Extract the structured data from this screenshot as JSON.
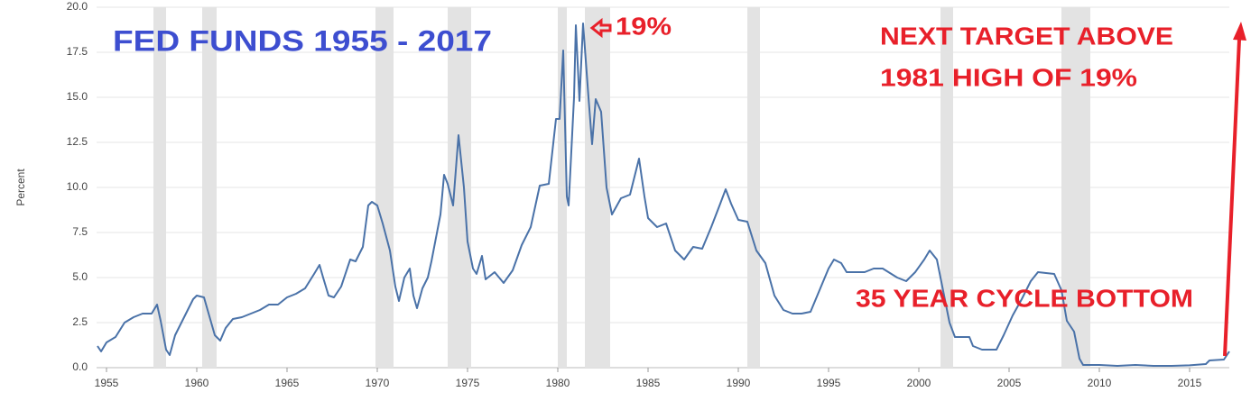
{
  "chart_data": {
    "type": "line",
    "y_label": "Percent",
    "annotations": [
      {
        "text": "FED FUNDS 1955 - 2017",
        "color": "#3d4ed0"
      },
      {
        "text": "19%",
        "color": "#e8202a"
      },
      {
        "text": "NEXT TARGET ABOVE",
        "color": "#e8202a"
      },
      {
        "text": "1981 HIGH OF 19%",
        "color": "#e8202a"
      },
      {
        "text": "35 YEAR CYCLE BOTTOM",
        "color": "#e8202a"
      }
    ],
    "xlim": [
      1954.45,
      2017.2
    ],
    "xticks": [
      1955,
      1960,
      1965,
      1970,
      1975,
      1980,
      1985,
      1990,
      1995,
      2000,
      2005,
      2010,
      2015
    ],
    "ylim": [
      0,
      20
    ],
    "yticks": [
      {
        "value": 0,
        "label": "0.0"
      },
      2.5,
      {
        "value": 5,
        "label": "5.0"
      },
      7.5,
      {
        "value": 10,
        "label": "10.0"
      },
      12.5,
      {
        "value": 15,
        "label": "15.0"
      },
      17.5,
      {
        "value": 20,
        "label": "20.0"
      }
    ],
    "grid": true,
    "recessions": [
      [
        1957.6,
        1958.3
      ],
      [
        1960.3,
        1961.1
      ],
      [
        1969.9,
        1970.9
      ],
      [
        1973.9,
        1975.2
      ],
      [
        1980.0,
        1980.5
      ],
      [
        1981.5,
        1982.9
      ],
      [
        1990.5,
        1991.2
      ],
      [
        2001.2,
        2001.9
      ],
      [
        2007.9,
        2009.5
      ]
    ],
    "recession_color": "#e3e3e3",
    "series": [
      {
        "name": "Fed Funds",
        "color": "#4a72a8",
        "x": [
          1954.5,
          1954.7,
          1955.0,
          1955.5,
          1956,
          1956.5,
          1957,
          1957.5,
          1957.8,
          1958.0,
          1958.3,
          1958.5,
          1958.8,
          1959.3,
          1959.8,
          1960.0,
          1960.4,
          1960.8,
          1961.0,
          1961.3,
          1961.6,
          1962,
          1962.5,
          1963,
          1963.5,
          1964,
          1964.5,
          1965,
          1965.5,
          1966,
          1966.5,
          1966.8,
          1967.0,
          1967.3,
          1967.6,
          1968,
          1968.5,
          1968.8,
          1969.2,
          1969.5,
          1969.7,
          1970.0,
          1970.3,
          1970.7,
          1971.0,
          1971.2,
          1971.5,
          1971.8,
          1972.0,
          1972.2,
          1972.5,
          1972.8,
          1973.0,
          1973.5,
          1973.7,
          1973.9,
          1974.2,
          1974.5,
          1974.8,
          1975.0,
          1975.3,
          1975.5,
          1975.8,
          1976.0,
          1976.5,
          1977.0,
          1977.5,
          1978,
          1978.5,
          1979.0,
          1979.5,
          1979.9,
          1980.1,
          1980.3,
          1980.5,
          1980.6,
          1980.9,
          1981.0,
          1981.2,
          1981.4,
          1981.7,
          1981.9,
          1982.1,
          1982.4,
          1982.7,
          1983.0,
          1983.5,
          1984.0,
          1984.5,
          1984.8,
          1985,
          1985.5,
          1986,
          1986.5,
          1987.0,
          1987.5,
          1988,
          1988.5,
          1989.0,
          1989.3,
          1989.6,
          1990.0,
          1990.5,
          1991.0,
          1991.5,
          1992.0,
          1992.5,
          1993,
          1993.5,
          1994.0,
          1994.5,
          1995.0,
          1995.3,
          1995.7,
          1996,
          1996.5,
          1997,
          1997.5,
          1998,
          1998.8,
          1999.3,
          1999.8,
          2000.3,
          2000.6,
          2001.0,
          2001.3,
          2001.7,
          2002.0,
          2002.8,
          2003.0,
          2003.5,
          2004.3,
          2004.7,
          2005.2,
          2005.7,
          2006.2,
          2006.6,
          2007.5,
          2007.9,
          2008.2,
          2008.6,
          2008.9,
          2009.1,
          2010,
          2011,
          2012,
          2013,
          2014,
          2015,
          2015.9,
          2016.1,
          2016.9,
          2017.2
        ],
        "values": [
          1.2,
          0.9,
          1.4,
          1.7,
          2.5,
          2.8,
          3.0,
          3.0,
          3.5,
          2.6,
          1.0,
          0.7,
          1.8,
          2.8,
          3.8,
          4.0,
          3.9,
          2.5,
          1.8,
          1.5,
          2.2,
          2.7,
          2.8,
          3.0,
          3.2,
          3.5,
          3.5,
          3.9,
          4.1,
          4.4,
          5.2,
          5.7,
          5.0,
          4.0,
          3.9,
          4.5,
          6.0,
          5.9,
          6.7,
          9.0,
          9.2,
          9.0,
          8.0,
          6.5,
          4.5,
          3.7,
          5.0,
          5.5,
          4.0,
          3.3,
          4.4,
          5.0,
          5.9,
          8.5,
          10.7,
          10.2,
          9.0,
          12.9,
          10.0,
          7.0,
          5.5,
          5.2,
          6.2,
          4.9,
          5.3,
          4.7,
          5.4,
          6.8,
          7.8,
          10.1,
          10.2,
          13.8,
          13.8,
          17.6,
          9.5,
          9.0,
          15.0,
          19.0,
          14.8,
          19.1,
          15.0,
          12.4,
          14.9,
          14.2,
          10.0,
          8.5,
          9.4,
          9.6,
          11.6,
          9.5,
          8.3,
          7.8,
          8.0,
          6.5,
          6.0,
          6.7,
          6.6,
          7.8,
          9.1,
          9.9,
          9.1,
          8.2,
          8.1,
          6.5,
          5.8,
          4.0,
          3.2,
          3.0,
          3.0,
          3.1,
          4.3,
          5.5,
          6.0,
          5.8,
          5.3,
          5.3,
          5.3,
          5.5,
          5.5,
          5.0,
          4.8,
          5.3,
          6.0,
          6.5,
          6.0,
          4.5,
          2.5,
          1.7,
          1.7,
          1.2,
          1.0,
          1.0,
          1.8,
          2.9,
          3.8,
          4.8,
          5.3,
          5.2,
          4.3,
          2.6,
          2.0,
          0.5,
          0.15,
          0.15,
          0.1,
          0.15,
          0.1,
          0.1,
          0.13,
          0.2,
          0.4,
          0.45,
          0.9
        ]
      }
    ]
  }
}
